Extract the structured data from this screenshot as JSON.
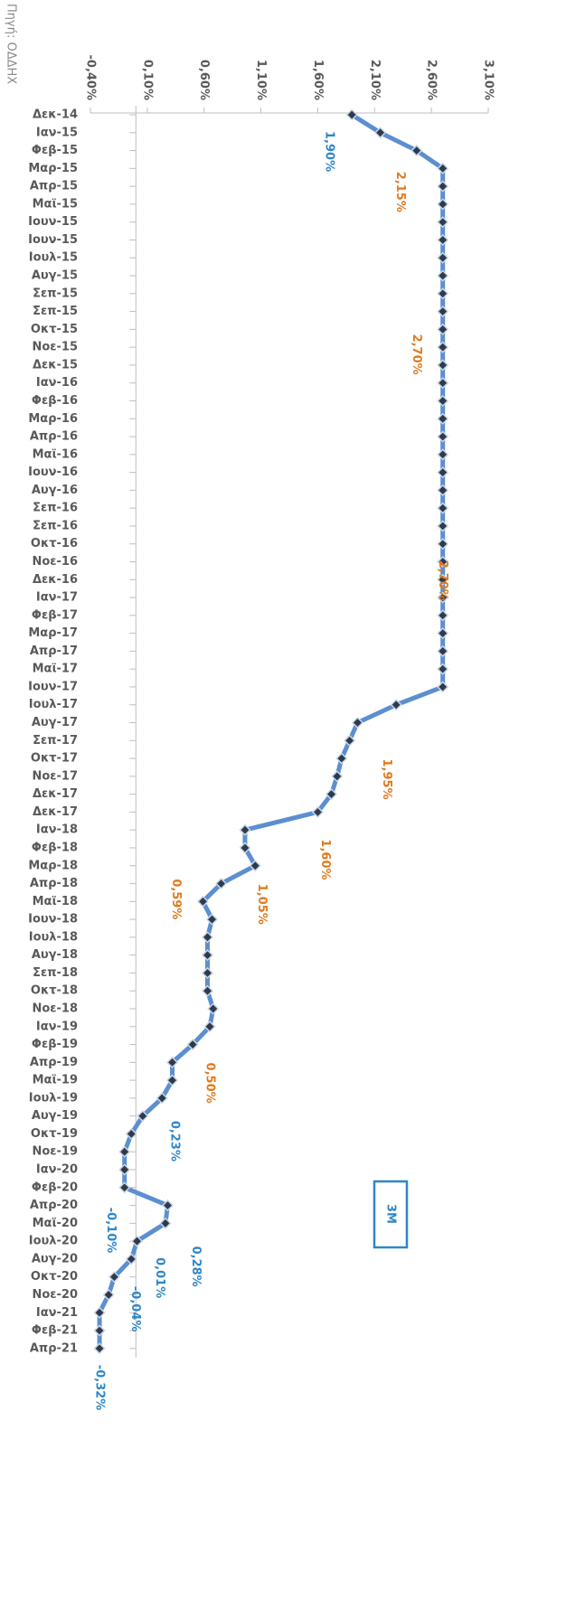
{
  "chart_data": {
    "type": "line",
    "source": "Πηγή: ΟΔΔΗΧ",
    "categories": [
      "Δεκ-14",
      "Ιαν-15",
      "Φεβ-15",
      "Μαρ-15",
      "Απρ-15",
      "Μαϊ-15",
      "Ιουν-15",
      "Ιουν-15",
      "Ιουλ-15",
      "Αυγ-15",
      "Σεπ-15",
      "Σεπ-15",
      "Οκτ-15",
      "Νοε-15",
      "Δεκ-15",
      "Ιαν-16",
      "Φεβ-16",
      "Μαρ-16",
      "Απρ-16",
      "Μαϊ-16",
      "Ιουν-16",
      "Αυγ-16",
      "Σεπ-16",
      "Σεπ-16",
      "Οκτ-16",
      "Νοε-16",
      "Δεκ-16",
      "Ιαν-17",
      "Φεβ-17",
      "Μαρ-17",
      "Απρ-17",
      "Μαϊ-17",
      "Ιουν-17",
      "Ιουλ-17",
      "Αυγ-17",
      "Σεπ-17",
      "Οκτ-17",
      "Νοε-17",
      "Δεκ-17",
      "Δεκ-17",
      "Ιαν-18",
      "Φεβ-18",
      "Μαρ-18",
      "Απρ-18",
      "Μαϊ-18",
      "Ιουν-18",
      "Ιουλ-18",
      "Αυγ-18",
      "Σεπ-18",
      "Οκτ-18",
      "Νοε-18",
      "Ιαν-19",
      "Φεβ-19",
      "Απρ-19",
      "Μαϊ-19",
      "Ιουλ-19",
      "Αυγ-19",
      "Οκτ-19",
      "Νοε-19",
      "Ιαν-20",
      "Φεβ-20",
      "Απρ-20",
      "Μαϊ-20",
      "Ιουλ-20",
      "Αυγ-20",
      "Οκτ-20",
      "Νοε-20",
      "Ιαν-21",
      "Φεβ-21",
      "Απρ-21"
    ],
    "series": [
      {
        "name": "3M",
        "color": "#5b8fd0",
        "values": [
          1.9,
          2.15,
          2.47,
          2.7,
          2.7,
          2.7,
          2.7,
          2.7,
          2.7,
          2.7,
          2.7,
          2.7,
          2.7,
          2.7,
          2.7,
          2.7,
          2.7,
          2.7,
          2.7,
          2.7,
          2.7,
          2.7,
          2.7,
          2.7,
          2.7,
          2.7,
          2.7,
          2.7,
          2.7,
          2.7,
          2.7,
          2.7,
          2.7,
          2.29,
          1.95,
          1.88,
          1.81,
          1.77,
          1.72,
          1.6,
          0.96,
          0.96,
          1.05,
          0.75,
          0.59,
          0.67,
          0.63,
          0.63,
          0.63,
          0.63,
          0.68,
          0.65,
          0.5,
          0.32,
          0.32,
          0.23,
          0.06,
          -0.04,
          -0.1,
          -0.1,
          -0.1,
          0.28,
          0.26,
          0.01,
          -0.04,
          -0.19,
          -0.24,
          -0.32,
          -0.32,
          -0.32
        ],
        "value_labels": [
          "1,90%",
          "2,15%",
          null,
          null,
          null,
          null,
          null,
          null,
          null,
          null,
          null,
          "2,70%",
          null,
          null,
          null,
          null,
          null,
          null,
          null,
          null,
          null,
          null,
          null,
          null,
          "2,70%",
          null,
          null,
          null,
          null,
          null,
          null,
          null,
          null,
          null,
          "1,95%",
          null,
          null,
          null,
          null,
          "1,60%",
          null,
          null,
          "1,05%",
          null,
          "0,59%",
          null,
          null,
          null,
          null,
          null,
          null,
          null,
          "0,50%",
          null,
          null,
          "0,23%",
          null,
          null,
          null,
          null,
          "-0,10%",
          "0,28%",
          null,
          "0,01%",
          "-0,04%",
          null,
          null,
          null,
          null,
          "-0,32%"
        ],
        "value_label_colors": [
          "#2e86c8",
          "#e07b20",
          null,
          null,
          null,
          null,
          null,
          null,
          null,
          null,
          null,
          "#e07b20",
          null,
          null,
          null,
          null,
          null,
          null,
          null,
          null,
          null,
          null,
          null,
          null,
          "#e07b20",
          null,
          null,
          null,
          null,
          null,
          null,
          null,
          null,
          null,
          "#e07b20",
          null,
          null,
          null,
          null,
          "#e07b20",
          null,
          null,
          "#e07b20",
          null,
          "#e07b20",
          null,
          null,
          null,
          null,
          null,
          null,
          null,
          "#e07b20",
          null,
          null,
          "#2e86c8",
          null,
          null,
          null,
          null,
          "#2e86c8",
          "#2e86c8",
          null,
          "#2e86c8",
          "#2e86c8",
          null,
          null,
          null,
          null,
          "#2e86c8"
        ]
      }
    ],
    "ylim": [
      -0.4,
      3.1
    ],
    "yticks": [
      {
        "value": -0.4,
        "label": "-0,40%"
      },
      {
        "value": 0.1,
        "label": "0,10%"
      },
      {
        "value": 0.6,
        "label": "0,60%"
      },
      {
        "value": 1.1,
        "label": "1,10%"
      },
      {
        "value": 1.6,
        "label": "1,60%"
      },
      {
        "value": 2.1,
        "label": "2,10%"
      },
      {
        "value": 2.6,
        "label": "2,60%"
      },
      {
        "value": 3.1,
        "label": "3,10%"
      }
    ],
    "legend": "bottom-right"
  }
}
